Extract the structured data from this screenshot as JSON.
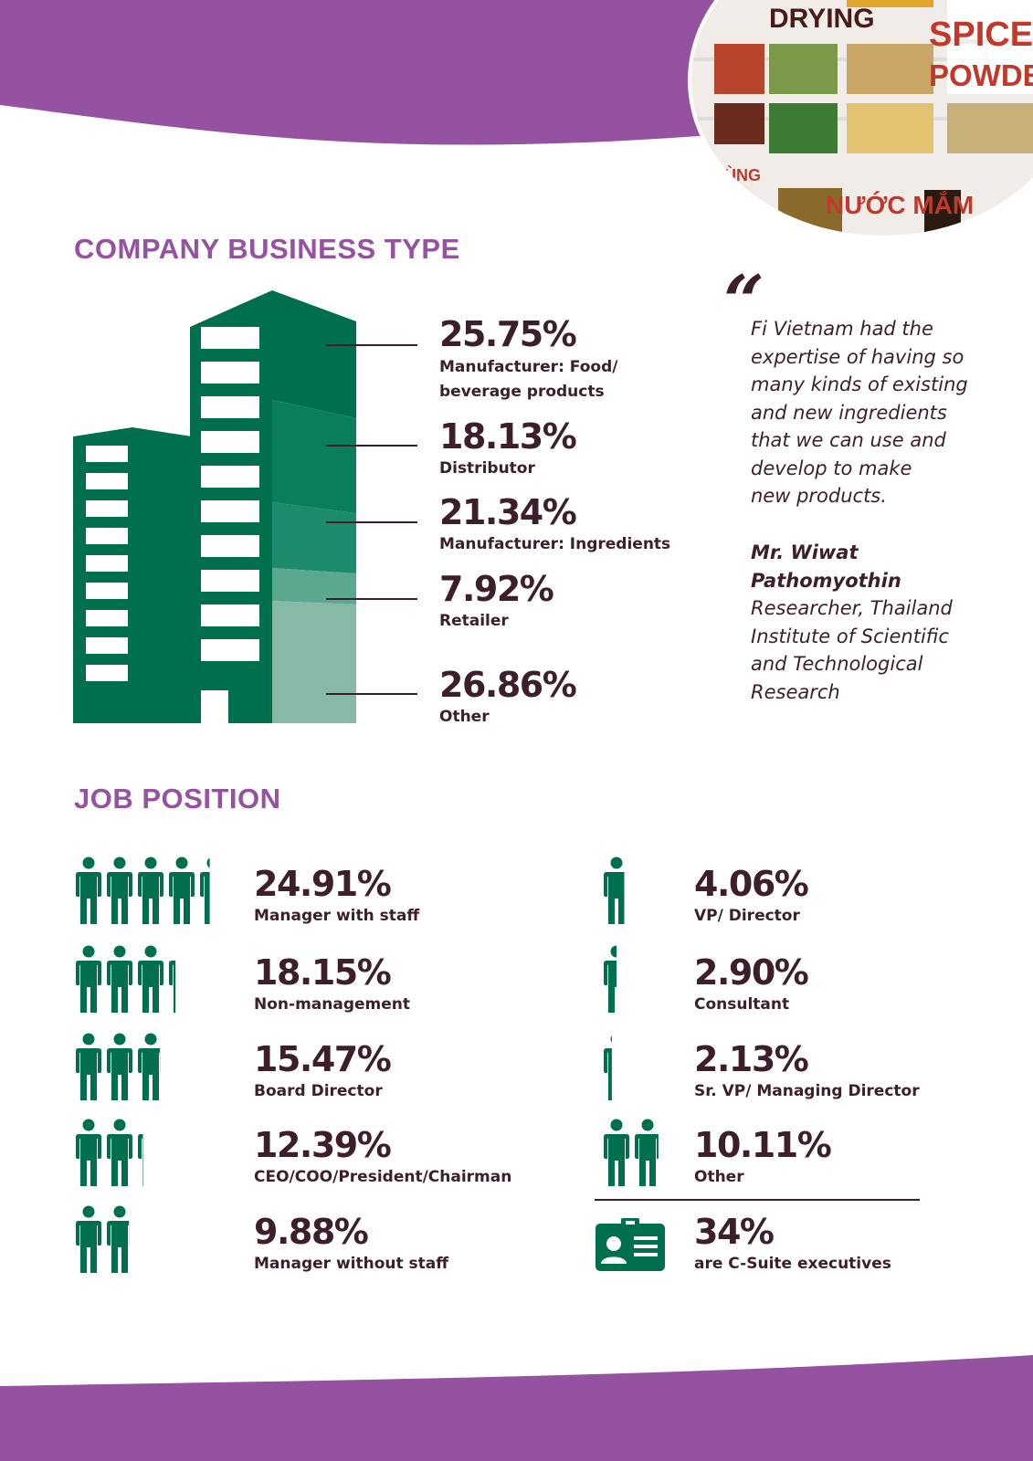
{
  "colors": {
    "purple": "#9552a0",
    "green_dark": "#006f4e",
    "green_mid": "#1c8a6c",
    "green_light": "#5aa88f",
    "green_pale": "#86b9a6",
    "text": "#3d1f2c"
  },
  "photo": {
    "signs": [
      "DRYING",
      "SPICES",
      "POWDER",
      "NƯỚC MẮM",
      "DÙNG"
    ]
  },
  "business_type": {
    "title": "COMPANY BUSINESS TYPE",
    "items": [
      {
        "value": "25.75%",
        "label_lines": [
          "Manufacturer: Food/",
          "beverage products"
        ]
      },
      {
        "value": "18.13%",
        "label_lines": [
          "Distributor"
        ]
      },
      {
        "value": "21.34%",
        "label_lines": [
          "Manufacturer: Ingredients"
        ]
      },
      {
        "value": "7.92%",
        "label_lines": [
          "Retailer"
        ]
      },
      {
        "value": "26.86%",
        "label_lines": [
          "Other"
        ]
      }
    ]
  },
  "quote": {
    "mark": "“",
    "text": "Fi Vietnam had the\nexpertise of having so\nmany kinds of existing\nand new ingredients\nthat we can use and\ndevelop to make\nnew products.",
    "author": "Mr. Wiwat\nPathomyothin",
    "role": "Researcher, Thailand\nInstitute of Scientific\nand Technological\nResearch"
  },
  "job_position": {
    "title": "JOB POSITION",
    "left": [
      {
        "value": "24.91%",
        "label": "Manager with staff",
        "icon": "people-icon",
        "people": 4.4
      },
      {
        "value": "18.15%",
        "label": "Non-management",
        "icon": "people-icon",
        "people": 3.3
      },
      {
        "value": "15.47%",
        "label": "Board Director",
        "icon": "people-icon",
        "people": 2.8
      },
      {
        "value": "12.39%",
        "label": "CEO/COO/President/Chairman",
        "icon": "people-icon",
        "people": 2.25
      },
      {
        "value": "9.88%",
        "label": "Manager without staff",
        "icon": "people-icon",
        "people": 1.8
      }
    ],
    "right": [
      {
        "value": "4.06%",
        "label": "VP/ Director",
        "icon": "person-icon",
        "people": 0.75
      },
      {
        "value": "2.90%",
        "label": "Consultant",
        "icon": "person-icon",
        "people": 0.5
      },
      {
        "value": "2.13%",
        "label": "Sr. VP/ Managing Director",
        "icon": "person-icon",
        "people": 0.35
      },
      {
        "value": "10.11%",
        "label": "Other",
        "icon": "people-icon",
        "people": 1.85
      }
    ],
    "summary": {
      "value": "34%",
      "label": "are C-Suite executives",
      "icon": "id-card-icon"
    }
  }
}
